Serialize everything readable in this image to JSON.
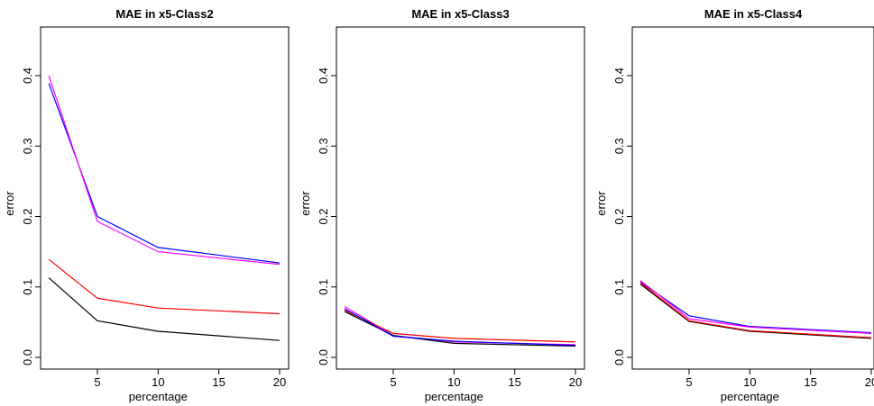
{
  "chart_data": [
    {
      "type": "line",
      "title": "MAE in x5-Class2",
      "xlabel": "percentage",
      "ylabel": "error",
      "x": [
        1,
        5,
        10,
        20
      ],
      "xticks": [
        "5",
        "10",
        "15",
        "20"
      ],
      "yticks": [
        "0.0",
        "0.1",
        "0.2",
        "0.3",
        "0.4"
      ],
      "ylim": [
        0,
        0.47
      ],
      "xlim": [
        0.25,
        20.75
      ],
      "grid": false,
      "series": [
        {
          "color": "#0000ff",
          "values": [
            0.389,
            0.2,
            0.156,
            0.134
          ]
        },
        {
          "color": "#ff00ff",
          "values": [
            0.4,
            0.193,
            0.15,
            0.132
          ]
        },
        {
          "color": "#ff0000",
          "values": [
            0.139,
            0.084,
            0.07,
            0.062
          ]
        },
        {
          "color": "#000000",
          "values": [
            0.113,
            0.052,
            0.037,
            0.024
          ]
        }
      ]
    },
    {
      "type": "line",
      "title": "MAE in x5-Class3",
      "xlabel": "percentage",
      "ylabel": "error",
      "x": [
        1,
        5,
        10,
        20
      ],
      "xticks": [
        "5",
        "10",
        "15",
        "20"
      ],
      "yticks": [
        "0.0",
        "0.1",
        "0.2",
        "0.3",
        "0.4"
      ],
      "ylim": [
        0,
        0.47
      ],
      "xlim": [
        0.25,
        20.75
      ],
      "grid": false,
      "series": [
        {
          "color": "#ff00ff",
          "values": [
            0.072,
            0.031,
            0.022,
            0.018
          ]
        },
        {
          "color": "#ff0000",
          "values": [
            0.067,
            0.034,
            0.027,
            0.022
          ]
        },
        {
          "color": "#000000",
          "values": [
            0.065,
            0.031,
            0.02,
            0.016
          ]
        },
        {
          "color": "#0000ff",
          "values": [
            0.069,
            0.03,
            0.023,
            0.017
          ]
        }
      ]
    },
    {
      "type": "line",
      "title": "MAE in x5-Class4",
      "xlabel": "percentage",
      "ylabel": "error",
      "x": [
        1,
        5,
        10,
        20
      ],
      "xticks": [
        "5",
        "10",
        "15",
        "20"
      ],
      "yticks": [
        "0.0",
        "0.1",
        "0.2",
        "0.3",
        "0.4"
      ],
      "ylim": [
        0,
        0.47
      ],
      "xlim": [
        0.25,
        20.75
      ],
      "grid": false,
      "series": [
        {
          "color": "#0000ff",
          "values": [
            0.107,
            0.059,
            0.044,
            0.035
          ]
        },
        {
          "color": "#ff00ff",
          "values": [
            0.109,
            0.055,
            0.043,
            0.034
          ]
        },
        {
          "color": "#000000",
          "values": [
            0.104,
            0.051,
            0.037,
            0.027
          ]
        },
        {
          "color": "#ff0000",
          "values": [
            0.106,
            0.052,
            0.038,
            0.028
          ]
        }
      ]
    }
  ]
}
